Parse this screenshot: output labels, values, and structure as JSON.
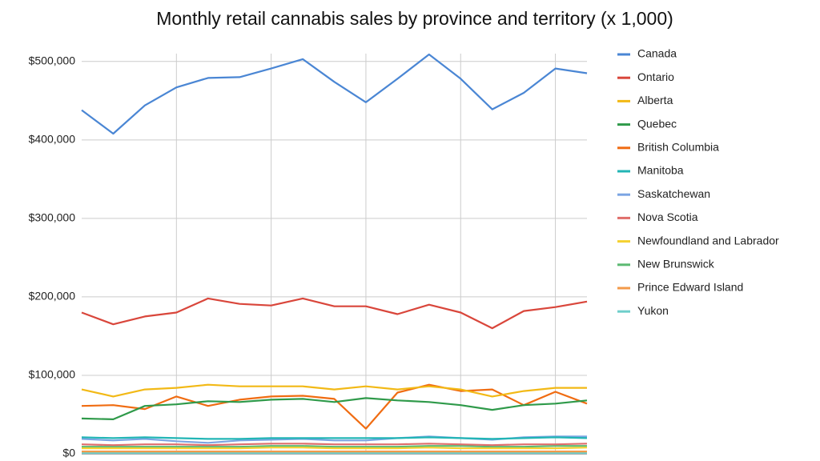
{
  "chart_data": {
    "type": "line",
    "title": "Monthly retail cannabis sales by province and territory (x 1,000)",
    "categories": [
      null,
      null,
      null,
      null,
      null,
      null,
      null,
      null,
      null,
      null,
      null,
      null,
      null,
      null,
      null,
      null,
      null
    ],
    "ylim": [
      0,
      510000
    ],
    "yticks": [
      {
        "value": 0,
        "label": "$0"
      },
      {
        "value": 100000,
        "label": "$100,000"
      },
      {
        "value": 200000,
        "label": "$200,000"
      },
      {
        "value": 300000,
        "label": "$300,000"
      },
      {
        "value": 400000,
        "label": "$400,000"
      },
      {
        "value": 500000,
        "label": "$500,000"
      }
    ],
    "grid": true,
    "legend": "right",
    "series": [
      {
        "name": "Canada",
        "color": "#4a86d4",
        "values": [
          438000,
          408000,
          444000,
          467000,
          479000,
          480000,
          491000,
          503000,
          474000,
          448000,
          478000,
          509000,
          478000,
          439000,
          460000,
          491000,
          485000
        ]
      },
      {
        "name": "Ontario",
        "color": "#d9463b",
        "values": [
          180000,
          165000,
          175000,
          180000,
          198000,
          191000,
          189000,
          198000,
          188000,
          188000,
          178000,
          190000,
          180000,
          160000,
          182000,
          187000,
          194000
        ]
      },
      {
        "name": "Alberta",
        "color": "#f2b916",
        "values": [
          82000,
          73000,
          82000,
          84000,
          88000,
          86000,
          86000,
          86000,
          82000,
          86000,
          82000,
          86000,
          82000,
          73000,
          80000,
          84000,
          84000
        ]
      },
      {
        "name": "Quebec",
        "color": "#2f9a4a",
        "values": [
          45000,
          44000,
          61000,
          63000,
          67000,
          66000,
          69000,
          70000,
          66000,
          71000,
          68000,
          66000,
          62000,
          56000,
          62000,
          64000,
          68000
        ]
      },
      {
        "name": "British Columbia",
        "color": "#f06c12",
        "values": [
          61000,
          62000,
          57000,
          73000,
          61000,
          69000,
          73000,
          74000,
          70000,
          32000,
          78000,
          88000,
          80000,
          82000,
          62000,
          79000,
          64000
        ]
      },
      {
        "name": "Manitoba",
        "color": "#22b5b5",
        "values": [
          21000,
          20000,
          21000,
          20000,
          19000,
          19000,
          20000,
          20000,
          20000,
          20000,
          20000,
          21000,
          20000,
          19000,
          20000,
          21000,
          20000
        ]
      },
      {
        "name": "Saskatchewan",
        "color": "#7ba5e3",
        "values": [
          19000,
          17000,
          19000,
          16000,
          14000,
          17000,
          18000,
          19000,
          17000,
          17000,
          20000,
          22000,
          20000,
          18000,
          21000,
          22000,
          22000
        ]
      },
      {
        "name": "Nova Scotia",
        "color": "#e06e6a",
        "values": [
          12000,
          11000,
          12000,
          12000,
          11000,
          12000,
          13000,
          13000,
          12000,
          12000,
          12000,
          13000,
          12000,
          11000,
          12000,
          12000,
          13000
        ]
      },
      {
        "name": "Newfoundland and Labrador",
        "color": "#f5d130",
        "values": [
          7000,
          7000,
          7000,
          7000,
          7000,
          7000,
          8000,
          8000,
          7000,
          7000,
          7000,
          8000,
          7000,
          7000,
          7000,
          7000,
          8000
        ]
      },
      {
        "name": "New Brunswick",
        "color": "#5cba72",
        "values": [
          9000,
          9000,
          9000,
          9000,
          9000,
          9000,
          10000,
          10000,
          9000,
          9000,
          9000,
          10000,
          10000,
          9000,
          9000,
          10000,
          10000
        ]
      },
      {
        "name": "Prince Edward Island",
        "color": "#f39a4a",
        "values": [
          3000,
          3000,
          3000,
          3000,
          3000,
          3000,
          3000,
          3000,
          3000,
          3000,
          3000,
          3000,
          3000,
          3000,
          3000,
          3000,
          3000
        ]
      },
      {
        "name": "Yukon",
        "color": "#6fcfcb",
        "values": [
          1000,
          1000,
          1000,
          1000,
          1000,
          1000,
          1000,
          1000,
          1000,
          1000,
          1000,
          1000,
          1000,
          1000,
          1000,
          1000,
          1000
        ]
      }
    ]
  }
}
